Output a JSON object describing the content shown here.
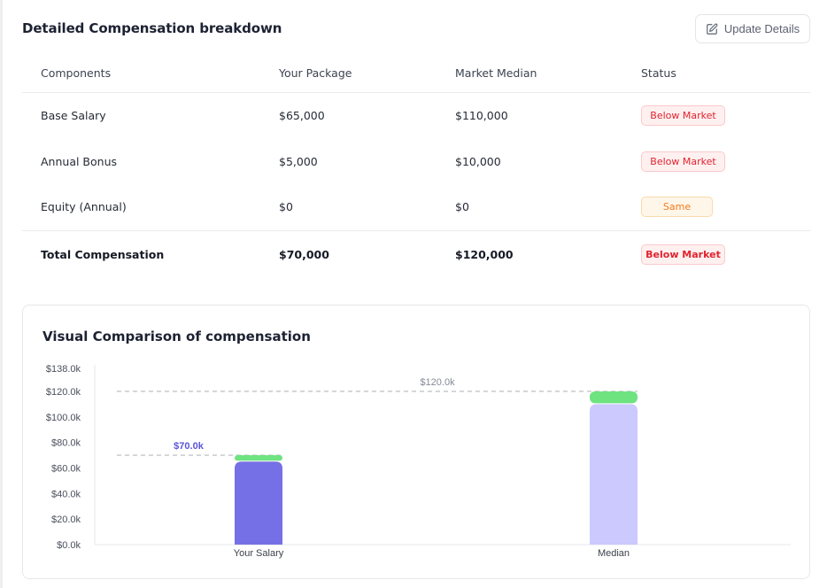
{
  "header": {
    "title": "Detailed Compensation breakdown",
    "update_button": {
      "label": "Update Details",
      "icon": "edit-icon"
    }
  },
  "table": {
    "columns": [
      "Components",
      "Your Package",
      "Market Median",
      "Status"
    ],
    "rows": [
      {
        "component": "Base Salary",
        "package": "$65,000",
        "median": "$110,000",
        "status": "Below Market",
        "status_type": "below"
      },
      {
        "component": "Annual Bonus",
        "package": "$5,000",
        "median": "$10,000",
        "status": "Below Market",
        "status_type": "below"
      },
      {
        "component": "Equity (Annual)",
        "package": "$0",
        "median": "$0",
        "status": "Same",
        "status_type": "same"
      }
    ],
    "total": {
      "component": "Total Compensation",
      "package": "$70,000",
      "median": "$120,000",
      "status": "Below Market",
      "status_type": "below"
    }
  },
  "chart_card": {
    "title": "Visual Comparison of compensation"
  },
  "colors": {
    "your_base": "#7670e6",
    "median_base": "#cbc9fd",
    "bonus": "#6ee380",
    "annotation_your": "#5b55d9",
    "annotation_median": "#858a96",
    "below_text": "#e0242f",
    "same_text": "#f27b1d"
  },
  "chart_data": {
    "type": "bar",
    "stacked": true,
    "title": "Visual Comparison of compensation",
    "categories": [
      "Your Salary",
      "Median"
    ],
    "series": [
      {
        "name": "Base Salary",
        "values": [
          65000,
          110000
        ]
      },
      {
        "name": "Annual Bonus",
        "values": [
          5000,
          10000
        ]
      },
      {
        "name": "Equity (Annual)",
        "values": [
          0,
          0
        ]
      }
    ],
    "totals": [
      70000,
      120000
    ],
    "annotations": [
      {
        "category": "Your Salary",
        "value": 70000,
        "label": "$70.0k"
      },
      {
        "category": "Median",
        "value": 120000,
        "label": "$120.0k"
      }
    ],
    "yticks": [
      0,
      20000,
      40000,
      60000,
      80000,
      100000,
      120000,
      138000
    ],
    "ytick_labels": [
      "$0.0k",
      "$20.0k",
      "$40.0k",
      "$60.0k",
      "$80.0k",
      "$100.0k",
      "$120.0k",
      "$138.0k"
    ],
    "ylim": [
      0,
      138000
    ],
    "xlabel": "",
    "ylabel": "",
    "grid": false,
    "legend": "none"
  }
}
